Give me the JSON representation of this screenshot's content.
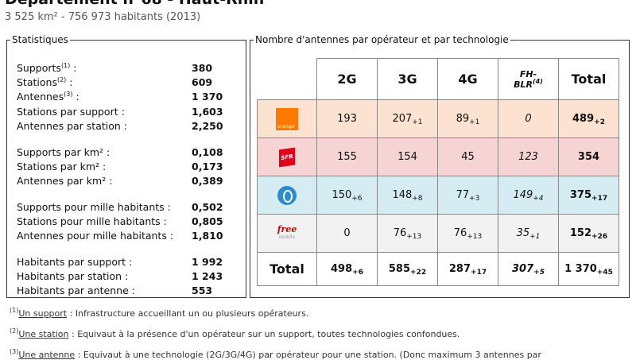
{
  "header": {
    "title": "Département n°68 - Haut-Rhin",
    "subtitle": "3 525 km² - 756 973 habitants (2013)"
  },
  "stats": {
    "legend": "Statistiques",
    "rows": [
      {
        "label": "Supports",
        "note": "(1)",
        "suffix": " :",
        "value": "380"
      },
      {
        "label": "Stations",
        "note": "(2)",
        "suffix": " :",
        "value": "609"
      },
      {
        "label": "Antennes",
        "note": "(3)",
        "suffix": " :",
        "value": "1 370"
      },
      {
        "label": "Stations par support :",
        "value": "1,603"
      },
      {
        "label": "Antennes par station :",
        "value": "2,250"
      },
      {
        "label": "Supports par km² :",
        "value": "0,108"
      },
      {
        "label": "Stations par km² :",
        "value": "0,173"
      },
      {
        "label": "Antennes par km² :",
        "value": "0,389"
      },
      {
        "label": "Supports pour mille habitants :",
        "value": "0,502"
      },
      {
        "label": "Stations pour mille habitants :",
        "value": "0,805"
      },
      {
        "label": "Antennes pour mille habitants :",
        "value": "1,810"
      },
      {
        "label": "Habitants par support :",
        "value": "1 992"
      },
      {
        "label": "Habitants par station :",
        "value": "1 243"
      },
      {
        "label": "Habitants par antenne :",
        "value": "553"
      }
    ]
  },
  "operators_table": {
    "legend": "Nombre d'antennes par opérateur et par technologie",
    "headers": {
      "c2g": "2G",
      "c3g": "3G",
      "c4g": "4G",
      "fh_line1": "FH-",
      "fh_line2": "BLR",
      "fh_sup": "(4)",
      "total": "Total"
    },
    "logos": {
      "orange": "orange",
      "sfr": "SFR",
      "free": "free",
      "free_sub": "mobile"
    },
    "rows": {
      "orange": {
        "g2": "193",
        "g2d": "",
        "g3": "207",
        "g3d": "+1",
        "g4": "89",
        "g4d": "+1",
        "fh": "0",
        "fhd": "",
        "tot": "489",
        "totd": "+2"
      },
      "sfr": {
        "g2": "155",
        "g2d": "",
        "g3": "154",
        "g3d": "",
        "g4": "45",
        "g4d": "",
        "fh": "123",
        "fhd": "",
        "tot": "354",
        "totd": ""
      },
      "bouygues": {
        "g2": "150",
        "g2d": "+6",
        "g3": "148",
        "g3d": "+8",
        "g4": "77",
        "g4d": "+3",
        "fh": "149",
        "fhd": "+4",
        "tot": "375",
        "totd": "+17"
      },
      "free": {
        "g2": "0",
        "g2d": "",
        "g3": "76",
        "g3d": "+13",
        "g4": "76",
        "g4d": "+13",
        "fh": "35",
        "fhd": "+1",
        "tot": "152",
        "totd": "+26"
      }
    },
    "total": {
      "label": "Total",
      "g2": "498",
      "g2d": "+6",
      "g3": "585",
      "g3d": "+22",
      "g4": "287",
      "g4d": "+17",
      "fh": "307",
      "fhd": "+5",
      "tot": "1 370",
      "totd": "+45"
    }
  },
  "footnotes": [
    {
      "mark": "(1)",
      "term": "Un support",
      "text": " : Infrastructure accueillant un ou plusieurs opérateurs."
    },
    {
      "mark": "(2)",
      "term": "Une station",
      "text": " : Equivaut à la présence d'un opérateur sur un support, toutes technologies confondues."
    },
    {
      "mark": "(3)",
      "term": "Une antenne",
      "text": " : Equivaut à une technologie (2G/3G/4G) par opérateur pour une station. (Donc maximum 3 antennes par"
    }
  ]
}
